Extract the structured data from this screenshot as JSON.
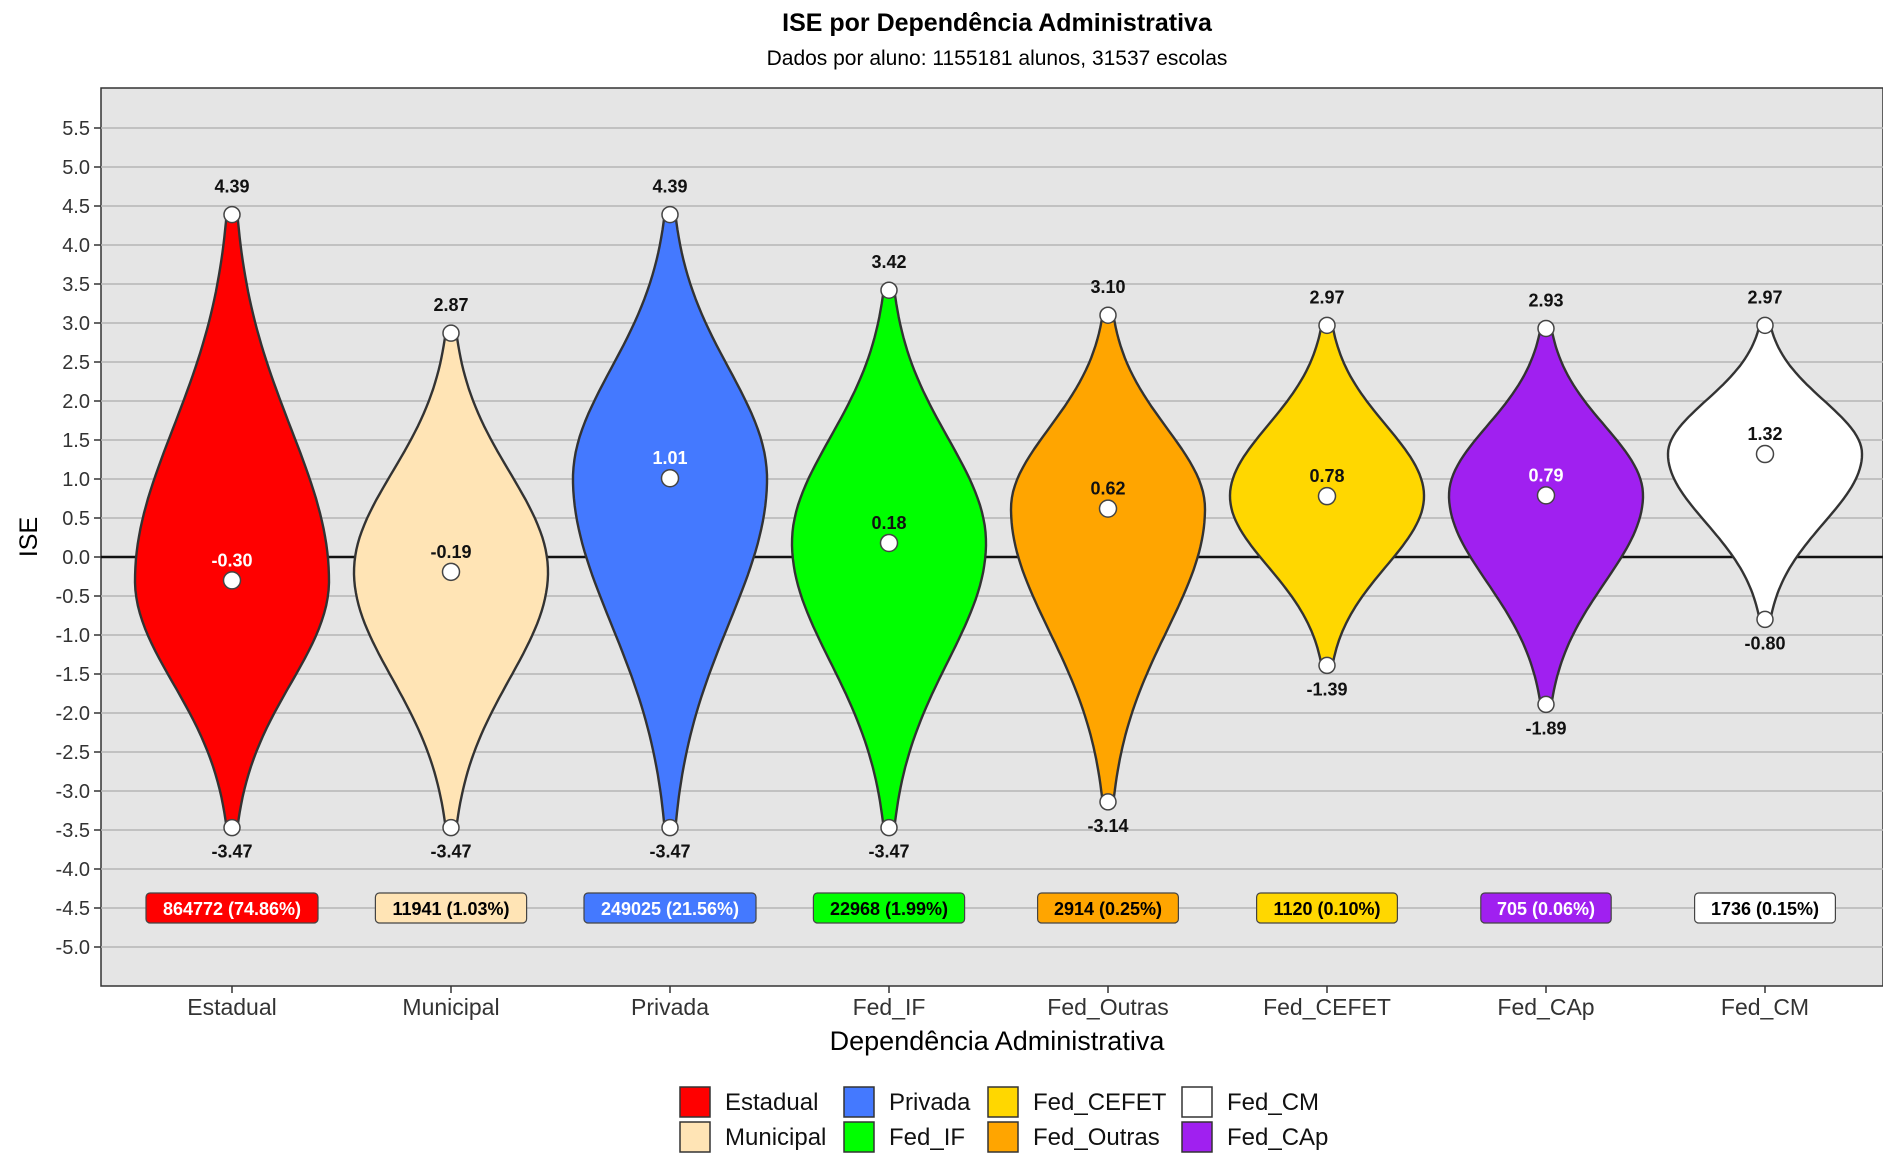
{
  "chart_data": {
    "type": "violin",
    "title": "ISE por Dependência Administrativa",
    "subtitle": "Dados por aluno: 1155181 alunos, 31537 escolas",
    "xlabel": "Dependência Administrativa",
    "ylabel": "ISE",
    "ylim": [
      -5.5,
      6.0
    ],
    "yticks": [
      "5.5",
      "5.0",
      "4.5",
      "4.0",
      "3.5",
      "3.0",
      "2.5",
      "2.0",
      "1.5",
      "1.0",
      "0.5",
      "0.0",
      "-0.5",
      "-1.0",
      "-1.5",
      "-2.0",
      "-2.5",
      "-3.0",
      "-3.5",
      "-4.0",
      "-4.5",
      "-5.0"
    ],
    "grid": true,
    "reference_line": 0,
    "legend_position": "bottom",
    "categories": [
      "Estadual",
      "Municipal",
      "Privada",
      "Fed_IF",
      "Fed_Outras",
      "Fed_CEFET",
      "Fed_CAp",
      "Fed_CM"
    ],
    "series": [
      {
        "name": "Estadual",
        "color": "#ff0000",
        "max": 4.39,
        "max_label": "4.39",
        "mean": -0.3,
        "mean_label": "-0.30",
        "min": -3.47,
        "min_label": "-3.47",
        "count_label": "864772 (74.86%)",
        "count_text_color": "#ffffff"
      },
      {
        "name": "Municipal",
        "color": "#ffe4b5",
        "max": 2.87,
        "max_label": "2.87",
        "mean": -0.19,
        "mean_label": "-0.19",
        "min": -3.47,
        "min_label": "-3.47",
        "count_label": "11941 (1.03%)",
        "count_text_color": "#000000"
      },
      {
        "name": "Privada",
        "color": "#4479ff",
        "max": 4.39,
        "max_label": "4.39",
        "mean": 1.01,
        "mean_label": "1.01",
        "min": -3.47,
        "min_label": "-3.47",
        "count_label": "249025 (21.56%)",
        "count_text_color": "#ffffff"
      },
      {
        "name": "Fed_IF",
        "color": "#00ff00",
        "max": 3.42,
        "max_label": "3.42",
        "mean": 0.18,
        "mean_label": "0.18",
        "min": -3.47,
        "min_label": "-3.47",
        "count_label": "22968 (1.99%)",
        "count_text_color": "#000000"
      },
      {
        "name": "Fed_Outras",
        "color": "#ffa500",
        "max": 3.1,
        "max_label": "3.10",
        "mean": 0.62,
        "mean_label": "0.62",
        "min": -3.14,
        "min_label": "-3.14",
        "count_label": "2914 (0.25%)",
        "count_text_color": "#000000"
      },
      {
        "name": "Fed_CEFET",
        "color": "#ffd700",
        "max": 2.97,
        "max_label": "2.97",
        "mean": 0.78,
        "mean_label": "0.78",
        "min": -1.39,
        "min_label": "-1.39",
        "count_label": "1120 (0.10%)",
        "count_text_color": "#000000"
      },
      {
        "name": "Fed_CAp",
        "color": "#a020f0",
        "max": 2.93,
        "max_label": "2.93",
        "mean": 0.79,
        "mean_label": "0.79",
        "min": -1.89,
        "min_label": "-1.89",
        "count_label": "705 (0.06%)",
        "count_text_color": "#ffffff"
      },
      {
        "name": "Fed_CM",
        "color": "#ffffff",
        "max": 2.97,
        "max_label": "2.97",
        "mean": 1.32,
        "mean_label": "1.32",
        "min": -0.8,
        "min_label": "-0.80",
        "count_label": "1736 (0.15%)",
        "count_text_color": "#000000"
      }
    ],
    "legend": [
      {
        "label": "Estadual",
        "color": "#ff0000"
      },
      {
        "label": "Municipal",
        "color": "#ffe4b5"
      },
      {
        "label": "Privada",
        "color": "#4479ff"
      },
      {
        "label": "Fed_IF",
        "color": "#00ff00"
      },
      {
        "label": "Fed_CEFET",
        "color": "#ffd700"
      },
      {
        "label": "Fed_Outras",
        "color": "#ffa500"
      },
      {
        "label": "Fed_CM",
        "color": "#ffffff"
      },
      {
        "label": "Fed_CAp",
        "color": "#a020f0"
      }
    ]
  }
}
